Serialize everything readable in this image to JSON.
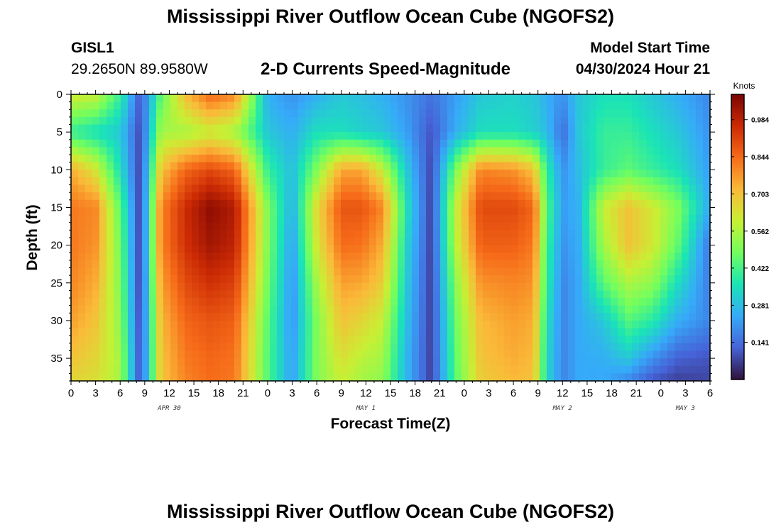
{
  "title": "Mississippi River Outflow Ocean Cube (NGOFS2)",
  "title_repeat": "Mississippi River Outflow Ocean Cube (NGOFS2)",
  "station": {
    "id": "GISL1",
    "coords": "29.2650N  89.9580W"
  },
  "subtitle": "2-D Currents Speed-Magnitude",
  "model_start": {
    "label": "Model Start Time",
    "value": "04/30/2024 Hour 21"
  },
  "chart_data": {
    "type": "heatmap",
    "title": "2-D Currents Speed-Magnitude",
    "xlabel": "Forecast Time(Z)",
    "ylabel": "Depth (ft)",
    "x_range_hours": [
      0,
      78
    ],
    "ylim": [
      0,
      38
    ],
    "y_inverted": true,
    "x_tick_labels": [
      "0",
      "3",
      "6",
      "9",
      "12",
      "15",
      "18",
      "21",
      "0",
      "3",
      "6",
      "9",
      "12",
      "15",
      "18",
      "21",
      "0",
      "3",
      "6",
      "9",
      "12",
      "15",
      "18",
      "21",
      "0",
      "3",
      "6"
    ],
    "y_ticks": [
      0,
      5,
      10,
      15,
      20,
      25,
      30,
      35
    ],
    "date_labels": [
      {
        "text": "APR 30",
        "hour": 12
      },
      {
        "text": "MAY 1",
        "hour": 36
      },
      {
        "text": "MAY 2",
        "hour": 60
      },
      {
        "text": "MAY 3",
        "hour": 75
      }
    ],
    "colorbar": {
      "unit": "Knots",
      "min": 0.0,
      "max": 1.08,
      "ticks": [
        0.141,
        0.281,
        0.422,
        0.562,
        0.703,
        0.844,
        0.984
      ],
      "colors": [
        "#30123b",
        "#4662d7",
        "#36aaf9",
        "#1ae4b6",
        "#72fe5e",
        "#c8ef34",
        "#faba39",
        "#f66b19",
        "#cb2a04",
        "#7a0403"
      ]
    },
    "columns": {
      "hours": [
        0,
        3,
        6,
        8.5,
        11,
        14,
        17,
        20,
        24,
        27,
        30,
        33,
        35.5,
        38,
        41,
        44,
        47,
        50,
        54,
        56.5,
        58,
        60,
        62,
        65,
        68,
        71,
        74,
        78
      ],
      "depth_levels": [
        0,
        5,
        10,
        15,
        20,
        25,
        30,
        35,
        38
      ],
      "speeds": [
        [
          0.62,
          0.4,
          0.74,
          0.82,
          0.82,
          0.8,
          0.76,
          0.7,
          0.66
        ],
        [
          0.6,
          0.35,
          0.62,
          0.8,
          0.78,
          0.74,
          0.7,
          0.66,
          0.64
        ],
        [
          0.4,
          0.3,
          0.35,
          0.45,
          0.48,
          0.5,
          0.52,
          0.55,
          0.55
        ],
        [
          0.1,
          0.08,
          0.07,
          0.06,
          0.06,
          0.06,
          0.07,
          0.08,
          0.08
        ],
        [
          0.45,
          0.55,
          0.7,
          0.8,
          0.8,
          0.76,
          0.72,
          0.7,
          0.7
        ],
        [
          0.72,
          0.55,
          0.85,
          0.96,
          0.95,
          0.9,
          0.85,
          0.82,
          0.8
        ],
        [
          0.85,
          0.6,
          0.9,
          1.05,
          1.02,
          0.95,
          0.88,
          0.85,
          0.84
        ],
        [
          0.8,
          0.55,
          0.85,
          1.0,
          0.98,
          0.92,
          0.86,
          0.83,
          0.82
        ],
        [
          0.25,
          0.3,
          0.4,
          0.5,
          0.5,
          0.48,
          0.45,
          0.44,
          0.44
        ],
        [
          0.2,
          0.25,
          0.28,
          0.25,
          0.22,
          0.2,
          0.2,
          0.22,
          0.22
        ],
        [
          0.25,
          0.35,
          0.5,
          0.65,
          0.62,
          0.55,
          0.5,
          0.5,
          0.5
        ],
        [
          0.3,
          0.35,
          0.75,
          0.88,
          0.84,
          0.76,
          0.7,
          0.64,
          0.6
        ],
        [
          0.28,
          0.32,
          0.75,
          0.88,
          0.83,
          0.75,
          0.66,
          0.58,
          0.55
        ],
        [
          0.25,
          0.3,
          0.6,
          0.8,
          0.74,
          0.68,
          0.6,
          0.55,
          0.52
        ],
        [
          0.2,
          0.22,
          0.3,
          0.35,
          0.32,
          0.3,
          0.28,
          0.26,
          0.26
        ],
        [
          0.15,
          0.1,
          0.08,
          0.07,
          0.07,
          0.07,
          0.07,
          0.07,
          0.07
        ],
        [
          0.22,
          0.25,
          0.5,
          0.6,
          0.58,
          0.52,
          0.48,
          0.46,
          0.45
        ],
        [
          0.3,
          0.35,
          0.8,
          0.9,
          0.86,
          0.78,
          0.72,
          0.7,
          0.68
        ],
        [
          0.32,
          0.35,
          0.78,
          0.9,
          0.86,
          0.8,
          0.76,
          0.74,
          0.72
        ],
        [
          0.3,
          0.32,
          0.7,
          0.85,
          0.82,
          0.78,
          0.74,
          0.72,
          0.7
        ],
        [
          0.25,
          0.28,
          0.4,
          0.45,
          0.42,
          0.4,
          0.36,
          0.34,
          0.34
        ],
        [
          0.2,
          0.14,
          0.2,
          0.22,
          0.2,
          0.18,
          0.18,
          0.18,
          0.18
        ],
        [
          0.3,
          0.3,
          0.28,
          0.26,
          0.25,
          0.24,
          0.24,
          0.24,
          0.24
        ],
        [
          0.35,
          0.4,
          0.4,
          0.6,
          0.55,
          0.45,
          0.3,
          0.25,
          0.24
        ],
        [
          0.35,
          0.4,
          0.45,
          0.7,
          0.7,
          0.56,
          0.44,
          0.3,
          0.18
        ],
        [
          0.3,
          0.35,
          0.4,
          0.62,
          0.62,
          0.52,
          0.38,
          0.2,
          0.1
        ],
        [
          0.25,
          0.3,
          0.35,
          0.5,
          0.46,
          0.35,
          0.25,
          0.12,
          0.07
        ],
        [
          0.18,
          0.2,
          0.22,
          0.24,
          0.15,
          0.16,
          0.18,
          0.1,
          0.08
        ]
      ]
    }
  }
}
